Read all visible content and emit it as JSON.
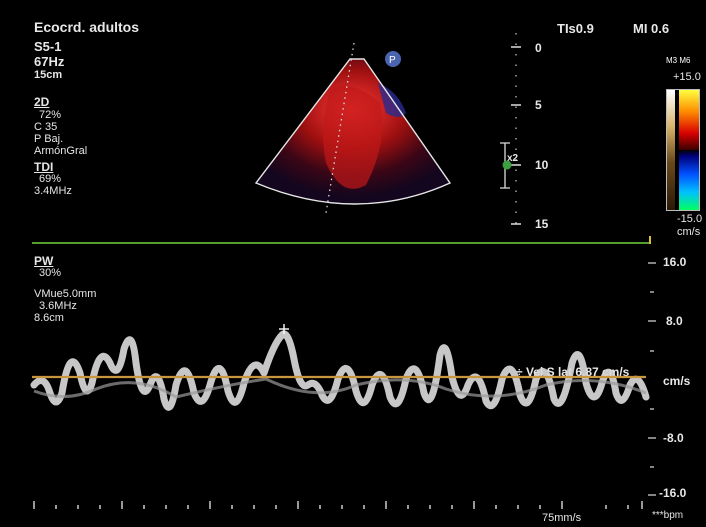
{
  "header": {
    "preset": "Ecocrd. adultos",
    "tis": "TIs0.9",
    "mi": "MI 0.6"
  },
  "probe": {
    "transducer": "S5-1",
    "frame_rate": "67Hz",
    "depth": "15cm"
  },
  "params_2d": {
    "title": "2D",
    "gain": "72%",
    "compress": "C 35",
    "power": "P Baj.",
    "harmonic": "ArmónGral"
  },
  "params_tdi": {
    "title": "TDI",
    "gain": "69%",
    "freq": "3.4MHz"
  },
  "params_pw": {
    "title": "PW",
    "gain": "30%",
    "sample_volume": "VMue5.0mm",
    "freq": "3.6MHz",
    "depth": "8.6cm"
  },
  "depth_scale": [
    "0",
    "5",
    "10",
    "15"
  ],
  "marker": "P",
  "focus_label": "x2",
  "colorbar": {
    "maps": "M3 M6",
    "top": "+15.0",
    "bottom": "-15.0",
    "unit": "cm/s"
  },
  "doppler_scale": {
    "ticks": [
      "16.0",
      "8.0",
      "-8.0",
      "-16.0"
    ],
    "unit": "cm/s"
  },
  "measurement": {
    "label": "Vel S lat",
    "value": "6.87 cm/s"
  },
  "sweep_speed": "75mm/s",
  "heart_rate": "***bpm",
  "colors": {
    "baseline": "#c8963c",
    "ecg_line": "#6fd23c",
    "doppler_color": "#d81414"
  }
}
